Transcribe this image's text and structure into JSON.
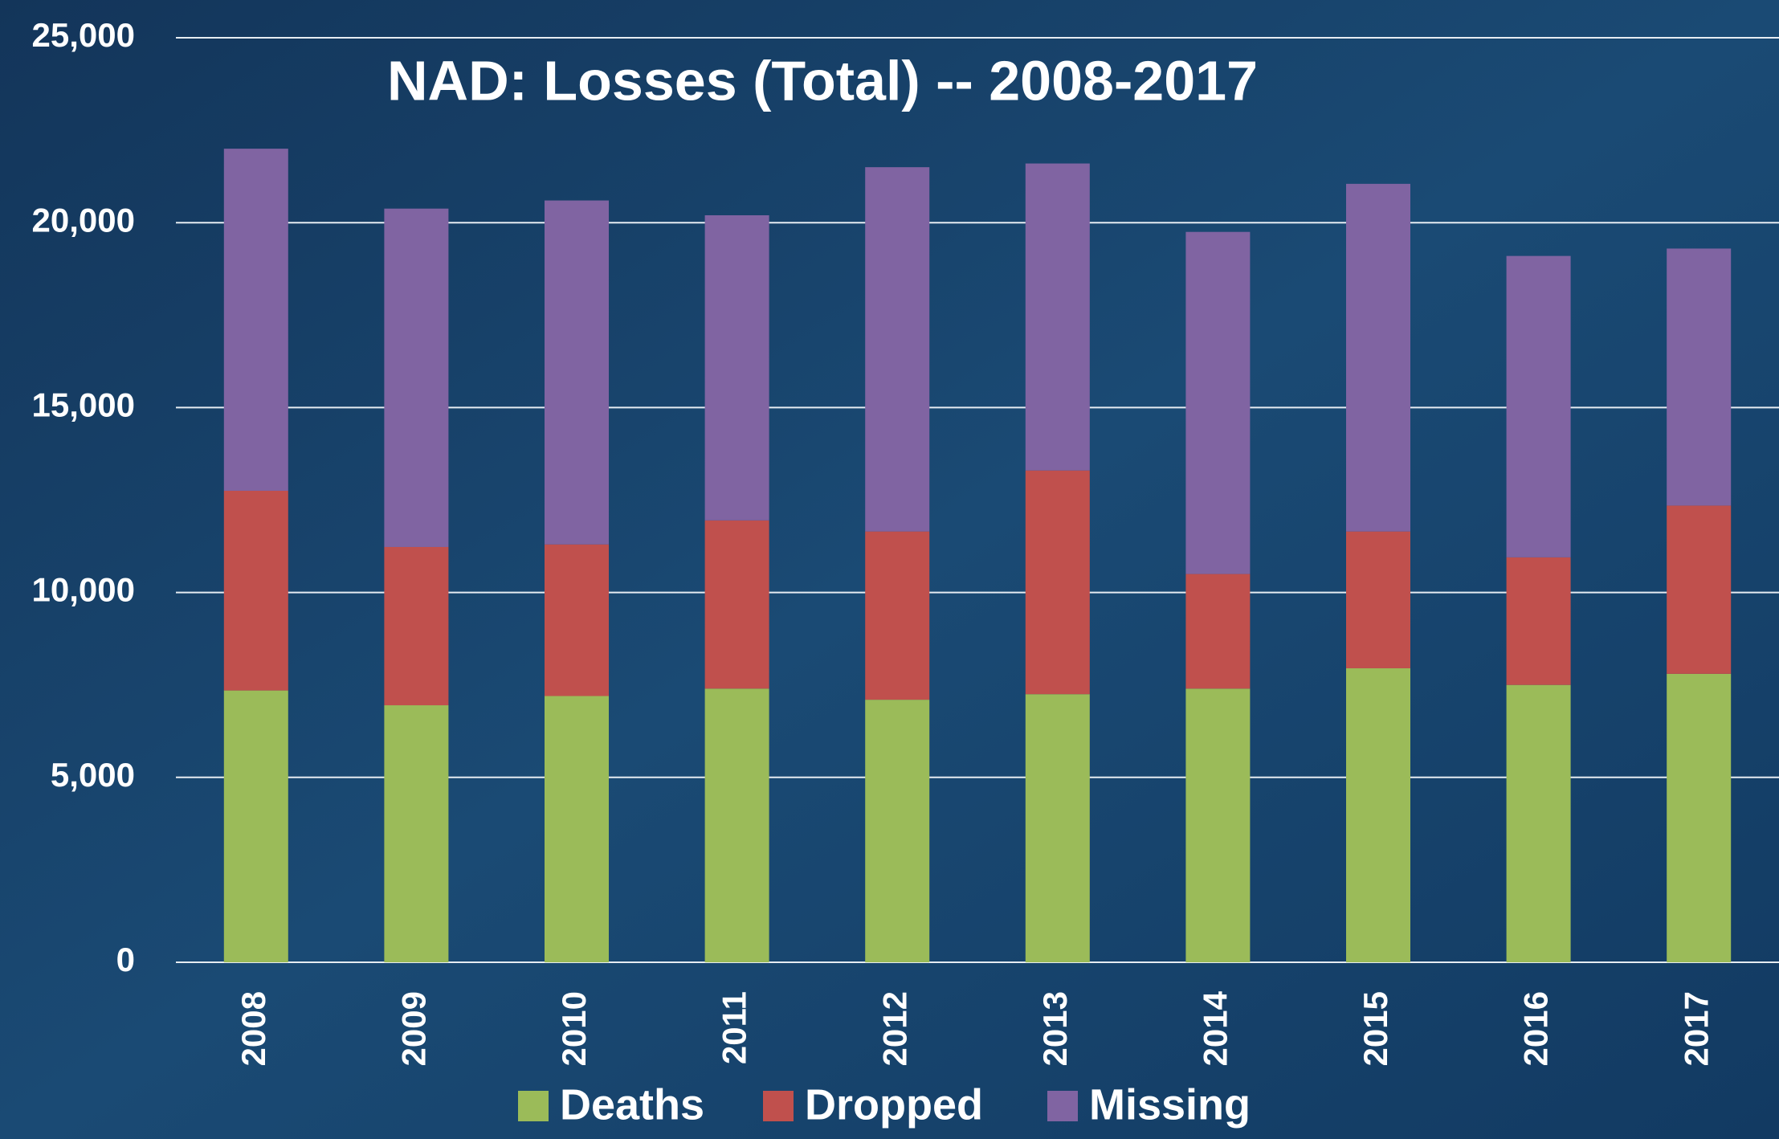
{
  "chart_data": {
    "type": "stacked-bar",
    "title": "NAD:  Losses (Total) -- 2008-2017",
    "categories": [
      "2008",
      "2009",
      "2010",
      "2011",
      "2012",
      "2013",
      "2014",
      "2015",
      "2016",
      "2017"
    ],
    "series": [
      {
        "name": "Deaths",
        "color": "#9bbb59",
        "values": [
          7350,
          6950,
          7200,
          7400,
          7100,
          7250,
          7400,
          7950,
          7500,
          7800
        ]
      },
      {
        "name": "Dropped",
        "color": "#c0504d",
        "values": [
          5400,
          4280,
          4100,
          4550,
          4550,
          6050,
          3100,
          3700,
          3450,
          4550
        ]
      },
      {
        "name": "Missing",
        "color": "#8064a2",
        "values": [
          9250,
          9150,
          9300,
          8250,
          9850,
          8300,
          9250,
          9400,
          8150,
          6950
        ]
      }
    ],
    "ylim": [
      0,
      25000
    ],
    "yticks": [
      0,
      {
        "value": 5000,
        "label": "5,000"
      },
      {
        "value": 10000,
        "label": "10,000"
      },
      {
        "value": 15000,
        "label": "15,000"
      },
      {
        "value": 20000,
        "label": "20,000"
      },
      {
        "value": 25000,
        "label": "25,000"
      }
    ],
    "grid": true,
    "legend": "bottom"
  }
}
